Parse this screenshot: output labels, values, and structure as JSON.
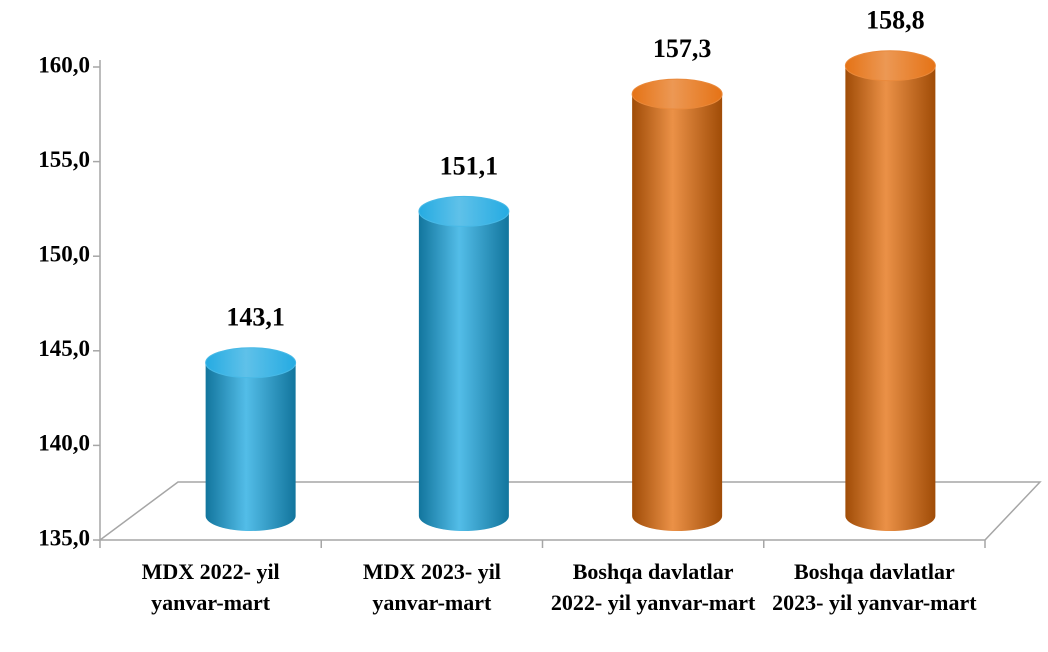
{
  "chart_data": {
    "type": "bar",
    "categories": [
      "MDX 2022- yil yanvar-mart",
      "MDX 2023- yil yanvar-mart",
      "Boshqa davlatlar 2022- yil yanvar-mart",
      "Boshqa davlatlar 2023- yil yanvar-mart"
    ],
    "values": [
      143.1,
      151.1,
      157.3,
      158.8
    ],
    "value_labels": [
      "143,1",
      "151,1",
      "157,3",
      "158,8"
    ],
    "colors": [
      "#1aa7e0",
      "#1aa7e0",
      "#e46c0a",
      "#e46c0a"
    ],
    "ylim": [
      135,
      160
    ],
    "yticks": [
      {
        "value": 135,
        "label": "135,0"
      },
      {
        "value": 140,
        "label": "140,0"
      },
      {
        "value": 145,
        "label": "145,0"
      },
      {
        "value": 150,
        "label": "150,0"
      },
      {
        "value": 155,
        "label": "155,0"
      },
      {
        "value": 160,
        "label": "160,0"
      }
    ]
  }
}
